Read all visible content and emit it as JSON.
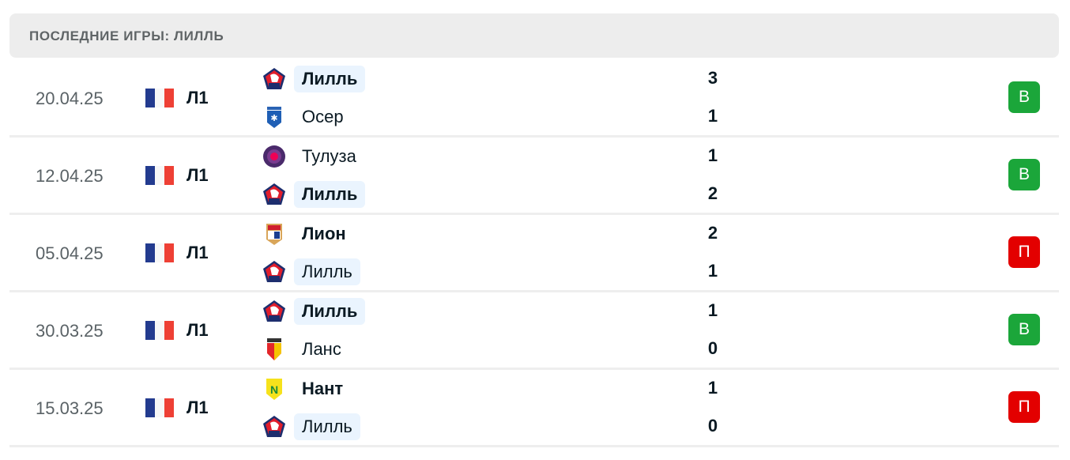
{
  "header": {
    "title": "ПОСЛЕДНИЕ ИГРЫ: ЛИЛЛЬ"
  },
  "colors": {
    "win": "#1ba63a",
    "loss": "#e30000",
    "highlight": "#eaf4fe"
  },
  "matches": [
    {
      "date": "20.04.25",
      "league": "Л1",
      "home": {
        "name": "Лилль",
        "logo": "lille-logo",
        "score": "3",
        "highlight": true,
        "winner": true
      },
      "away": {
        "name": "Осер",
        "logo": "auxerre-logo",
        "score": "1",
        "highlight": false,
        "winner": false
      },
      "result": "В",
      "result_type": "win"
    },
    {
      "date": "12.04.25",
      "league": "Л1",
      "home": {
        "name": "Тулуза",
        "logo": "toulouse-logo",
        "score": "1",
        "highlight": false,
        "winner": false
      },
      "away": {
        "name": "Лилль",
        "logo": "lille-logo",
        "score": "2",
        "highlight": true,
        "winner": true
      },
      "result": "В",
      "result_type": "win"
    },
    {
      "date": "05.04.25",
      "league": "Л1",
      "home": {
        "name": "Лион",
        "logo": "lyon-logo",
        "score": "2",
        "highlight": false,
        "winner": true
      },
      "away": {
        "name": "Лилль",
        "logo": "lille-logo",
        "score": "1",
        "highlight": true,
        "winner": false
      },
      "result": "П",
      "result_type": "loss"
    },
    {
      "date": "30.03.25",
      "league": "Л1",
      "home": {
        "name": "Лилль",
        "logo": "lille-logo",
        "score": "1",
        "highlight": true,
        "winner": true
      },
      "away": {
        "name": "Ланс",
        "logo": "lens-logo",
        "score": "0",
        "highlight": false,
        "winner": false
      },
      "result": "В",
      "result_type": "win"
    },
    {
      "date": "15.03.25",
      "league": "Л1",
      "home": {
        "name": "Нант",
        "logo": "nantes-logo",
        "score": "1",
        "highlight": false,
        "winner": true
      },
      "away": {
        "name": "Лилль",
        "logo": "lille-logo",
        "score": "0",
        "highlight": true,
        "winner": false
      },
      "result": "П",
      "result_type": "loss"
    }
  ]
}
